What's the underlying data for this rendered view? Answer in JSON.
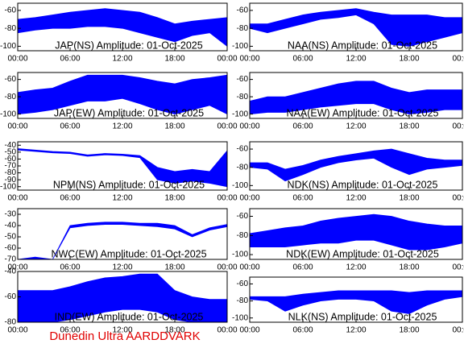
{
  "chart_data": [
    {
      "type": "band",
      "title": "JAP(NS) Amplitude: 01-Oct-2025",
      "x": [
        0,
        2,
        4,
        6,
        8,
        10,
        12,
        14,
        16,
        18,
        20,
        22,
        24
      ],
      "xlim": [
        0,
        24
      ],
      "xticks": [
        {
          "value": 0,
          "label": "00:00"
        },
        {
          "value": 6,
          "label": "06:00"
        },
        {
          "value": 12,
          "label": "12:00"
        },
        {
          "value": 18,
          "label": "18:00"
        },
        {
          "value": 24,
          "label": "00:00"
        }
      ],
      "ylim": [
        -105,
        -52
      ],
      "yticks": [
        -60,
        -80,
        -100
      ],
      "series": [
        {
          "color": "#0000ff",
          "values": [
            -70,
            -68,
            -65,
            -62,
            -60,
            -58,
            -60,
            -62,
            -68,
            -75,
            -72,
            -70,
            -68
          ]
        },
        {
          "color": "#0000ff",
          "values": [
            -85,
            -82,
            -80,
            -80,
            -78,
            -78,
            -80,
            -85,
            -90,
            -95,
            -88,
            -85,
            -100
          ]
        }
      ]
    },
    {
      "type": "band",
      "title": "JAP(EW) Amplitude: 01-Oct-2025",
      "x": [
        0,
        2,
        4,
        6,
        8,
        10,
        12,
        14,
        16,
        18,
        20,
        22,
        24
      ],
      "xlim": [
        0,
        24
      ],
      "xticks": [
        {
          "value": 0,
          "label": "00:00"
        },
        {
          "value": 6,
          "label": "06:00"
        },
        {
          "value": 12,
          "label": "12:00"
        },
        {
          "value": 18,
          "label": "18:00"
        },
        {
          "value": 24,
          "label": "00:00"
        }
      ],
      "ylim": [
        -105,
        -52
      ],
      "yticks": [
        -60,
        -80,
        -100
      ],
      "series": [
        {
          "color": "#0000ff",
          "values": [
            -75,
            -72,
            -70,
            -62,
            -55,
            -55,
            -55,
            -58,
            -62,
            -65,
            -60,
            -58,
            -55
          ]
        },
        {
          "color": "#0000ff",
          "values": [
            -100,
            -98,
            -95,
            -90,
            -85,
            -85,
            -82,
            -88,
            -95,
            -100,
            -95,
            -90,
            -100
          ]
        }
      ]
    },
    {
      "type": "band",
      "title": "NPM(NS) Amplitude: 01-Oct-2025",
      "x": [
        0,
        2,
        4,
        6,
        8,
        10,
        12,
        14,
        16,
        18,
        20,
        22,
        24
      ],
      "xlim": [
        0,
        24
      ],
      "xticks": [
        {
          "value": 0,
          "label": "00:00"
        },
        {
          "value": 6,
          "label": "06:00"
        },
        {
          "value": 12,
          "label": "12:00"
        },
        {
          "value": 18,
          "label": "18:00"
        },
        {
          "value": 24,
          "label": "00:00"
        }
      ],
      "ylim": [
        -105,
        -35
      ],
      "yticks": [
        -40,
        -50,
        -60,
        -70,
        -80,
        -90,
        -100
      ],
      "series": [
        {
          "color": "#0000ff",
          "values": [
            -45,
            -47,
            -49,
            -50,
            -54,
            -52,
            -53,
            -55,
            -72,
            -78,
            -75,
            -78,
            -48
          ]
        },
        {
          "color": "#0000ff",
          "values": [
            -47,
            -49,
            -51,
            -52,
            -56,
            -54,
            -55,
            -58,
            -90,
            -95,
            -92,
            -95,
            -100
          ]
        }
      ]
    },
    {
      "type": "band",
      "title": "NWC(EW) Amplitude: 01-Oct-2025",
      "x": [
        0,
        2,
        4,
        6,
        8,
        10,
        12,
        14,
        16,
        18,
        20,
        22,
        24
      ],
      "xlim": [
        0,
        24
      ],
      "xticks": [
        {
          "value": 0,
          "label": "00:00"
        },
        {
          "value": 6,
          "label": "06:00"
        },
        {
          "value": 12,
          "label": "12:00"
        },
        {
          "value": 18,
          "label": "18:00"
        },
        {
          "value": 24,
          "label": "00:00"
        }
      ],
      "ylim": [
        -70,
        -25
      ],
      "yticks": [
        -30,
        -40,
        -50,
        -60,
        -70
      ],
      "series": [
        {
          "color": "#0000ff",
          "values": [
            -70,
            -68,
            -70,
            -40,
            -38,
            -37,
            -37,
            -38,
            -38,
            -40,
            -48,
            -42,
            -39
          ]
        },
        {
          "color": "#0000ff",
          "values": [
            -70,
            -70,
            -70,
            -42,
            -40,
            -39,
            -39,
            -40,
            -41,
            -43,
            -50,
            -44,
            -41
          ]
        }
      ]
    },
    {
      "type": "band",
      "title": "IND(EW) Amplitude: 01-Oct-2025",
      "x": [
        0,
        2,
        4,
        6,
        8,
        10,
        12,
        14,
        16,
        18,
        20,
        22,
        24
      ],
      "xlim": [
        0,
        24
      ],
      "xticks": [
        {
          "value": 0,
          "label": "00:00"
        },
        {
          "value": 6,
          "label": "06:00"
        },
        {
          "value": 12,
          "label": "12:00"
        },
        {
          "value": 18,
          "label": "18:00"
        },
        {
          "value": 24,
          "label": "00:00"
        }
      ],
      "ylim": [
        -80,
        -40
      ],
      "yticks": [
        -40,
        -60,
        -80
      ],
      "series": [
        {
          "color": "#0000ff",
          "values": [
            -55,
            -55,
            -55,
            -52,
            -48,
            -45,
            -44,
            -42,
            -42,
            -55,
            -60,
            -62,
            -62
          ]
        },
        {
          "color": "#0000ff",
          "values": [
            -80,
            -80,
            -80,
            -78,
            -75,
            -72,
            -70,
            -70,
            -72,
            -78,
            -80,
            -80,
            -80
          ]
        }
      ]
    },
    {
      "type": "band",
      "title": "NAA(NS) Amplitude: 01-Oct-2025",
      "x": [
        0,
        2,
        4,
        6,
        8,
        10,
        12,
        14,
        16,
        18,
        20,
        22,
        24
      ],
      "xlim": [
        0,
        24
      ],
      "xticks": [
        {
          "value": 0,
          "label": "00:00"
        },
        {
          "value": 6,
          "label": "06:00"
        },
        {
          "value": 12,
          "label": "12:00"
        },
        {
          "value": 18,
          "label": "18:00"
        },
        {
          "value": 24,
          "label": "00:00"
        }
      ],
      "ylim": [
        -105,
        -52
      ],
      "yticks": [
        -60,
        -80,
        -100
      ],
      "series": [
        {
          "color": "#0000ff",
          "values": [
            -75,
            -75,
            -70,
            -65,
            -62,
            -60,
            -58,
            -62,
            -65,
            -65,
            -65,
            -68,
            -68
          ]
        },
        {
          "color": "#0000ff",
          "values": [
            -80,
            -85,
            -80,
            -75,
            -70,
            -68,
            -65,
            -75,
            -98,
            -100,
            -95,
            -90,
            -85
          ]
        }
      ]
    },
    {
      "type": "band",
      "title": "NAA(EW) Amplitude: 01-Oct-2025",
      "x": [
        0,
        2,
        4,
        6,
        8,
        10,
        12,
        14,
        16,
        18,
        20,
        22,
        24
      ],
      "xlim": [
        0,
        24
      ],
      "xticks": [
        {
          "value": 0,
          "label": "00:00"
        },
        {
          "value": 6,
          "label": "06:00"
        },
        {
          "value": 12,
          "label": "12:00"
        },
        {
          "value": 18,
          "label": "18:00"
        },
        {
          "value": 24,
          "label": "00:00"
        }
      ],
      "ylim": [
        -105,
        -52
      ],
      "yticks": [
        -60,
        -80,
        -100
      ],
      "series": [
        {
          "color": "#0000ff",
          "values": [
            -85,
            -80,
            -80,
            -75,
            -70,
            -65,
            -62,
            -62,
            -70,
            -75,
            -72,
            -72,
            -72
          ]
        },
        {
          "color": "#0000ff",
          "values": [
            -100,
            -98,
            -98,
            -95,
            -92,
            -90,
            -88,
            -88,
            -95,
            -100,
            -98,
            -95,
            -95
          ]
        }
      ]
    },
    {
      "type": "band",
      "title": "NDK(NS) Amplitude: 01-Oct-2025",
      "x": [
        0,
        2,
        4,
        6,
        8,
        10,
        12,
        14,
        16,
        18,
        20,
        22,
        24
      ],
      "xlim": [
        0,
        24
      ],
      "xticks": [
        {
          "value": 0,
          "label": "00:00"
        },
        {
          "value": 6,
          "label": "06:00"
        },
        {
          "value": 12,
          "label": "12:00"
        },
        {
          "value": 18,
          "label": "18:00"
        },
        {
          "value": 24,
          "label": "00:00"
        }
      ],
      "ylim": [
        -105,
        -52
      ],
      "yticks": [
        -60,
        -80,
        -100
      ],
      "series": [
        {
          "color": "#0000ff",
          "values": [
            -75,
            -75,
            -82,
            -78,
            -72,
            -68,
            -65,
            -62,
            -60,
            -65,
            -70,
            -72,
            -72
          ]
        },
        {
          "color": "#0000ff",
          "values": [
            -80,
            -82,
            -95,
            -88,
            -80,
            -75,
            -72,
            -70,
            -80,
            -88,
            -82,
            -80,
            -78
          ]
        }
      ]
    },
    {
      "type": "band",
      "title": "NDK(EW) Amplitude: 01-Oct-2025",
      "x": [
        0,
        2,
        4,
        6,
        8,
        10,
        12,
        14,
        16,
        18,
        20,
        22,
        24
      ],
      "xlim": [
        0,
        24
      ],
      "xticks": [
        {
          "value": 0,
          "label": "00:00"
        },
        {
          "value": 6,
          "label": "06:00"
        },
        {
          "value": 12,
          "label": "12:00"
        },
        {
          "value": 18,
          "label": "18:00"
        },
        {
          "value": 24,
          "label": "00:00"
        }
      ],
      "ylim": [
        -105,
        -52
      ],
      "yticks": [
        -60,
        -80,
        -100
      ],
      "series": [
        {
          "color": "#0000ff",
          "values": [
            -78,
            -75,
            -72,
            -70,
            -65,
            -62,
            -60,
            -58,
            -60,
            -65,
            -68,
            -70,
            -70
          ]
        },
        {
          "color": "#0000ff",
          "values": [
            -92,
            -92,
            -92,
            -90,
            -88,
            -88,
            -85,
            -85,
            -90,
            -95,
            -95,
            -92,
            -88
          ]
        }
      ]
    },
    {
      "type": "band",
      "title": "NLK(NS) Amplitude: 01-Oct-2025",
      "x": [
        0,
        2,
        4,
        6,
        8,
        10,
        12,
        14,
        16,
        18,
        20,
        22,
        24
      ],
      "xlim": [
        0,
        24
      ],
      "xticks": [
        {
          "value": 0,
          "label": "00:00"
        },
        {
          "value": 6,
          "label": "06:00"
        },
        {
          "value": 12,
          "label": "12:00"
        },
        {
          "value": 18,
          "label": "18:00"
        },
        {
          "value": 24,
          "label": "00:00"
        }
      ],
      "ylim": [
        -105,
        -52
      ],
      "yticks": [
        -60,
        -80,
        -100
      ],
      "series": [
        {
          "color": "#0000ff",
          "values": [
            -75,
            -75,
            -75,
            -72,
            -70,
            -68,
            -68,
            -68,
            -68,
            -70,
            -68,
            -68,
            -68
          ]
        },
        {
          "color": "#0000ff",
          "values": [
            -78,
            -80,
            -92,
            -85,
            -80,
            -78,
            -78,
            -80,
            -92,
            -95,
            -85,
            -78,
            -75
          ]
        }
      ]
    }
  ],
  "footer": "Dunedin Ultra AARDDVARK"
}
